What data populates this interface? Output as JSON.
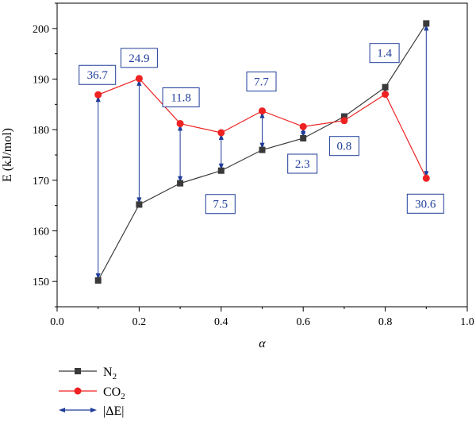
{
  "chart_data": {
    "type": "line",
    "title": "",
    "xlabel": "α",
    "ylabel": "E (kJ/mol)",
    "xlim": [
      0.0,
      1.0
    ],
    "ylim": [
      145,
      205
    ],
    "x_ticks": [
      0.0,
      0.2,
      0.4,
      0.6,
      0.8,
      1.0
    ],
    "x_tick_labels": [
      "0.0",
      "0.2",
      "0.4",
      "0.6",
      "0.8",
      "1.0"
    ],
    "y_ticks": [
      150,
      160,
      170,
      180,
      190,
      200
    ],
    "y_tick_labels": [
      "150",
      "160",
      "170",
      "180",
      "190",
      "200"
    ],
    "grid": false,
    "legend_position": "bottom-left, below plot",
    "series": [
      {
        "name": "N2",
        "color": "#3a3a3a",
        "marker": "square",
        "x": [
          0.1,
          0.2,
          0.3,
          0.4,
          0.5,
          0.6,
          0.7,
          0.8,
          0.9
        ],
        "values": [
          150.2,
          165.2,
          169.4,
          171.9,
          176.0,
          178.3,
          182.6,
          188.4,
          201.0
        ]
      },
      {
        "name": "CO2",
        "color": "#ee2222",
        "marker": "circle",
        "x": [
          0.1,
          0.2,
          0.3,
          0.4,
          0.5,
          0.6,
          0.7,
          0.8,
          0.9
        ],
        "values": [
          186.9,
          190.1,
          181.2,
          179.4,
          183.7,
          180.6,
          181.8,
          187.0,
          170.4
        ]
      }
    ],
    "delta_series": {
      "name": "|ΔE|",
      "color": "#1f3c99",
      "x": [
        0.1,
        0.2,
        0.3,
        0.4,
        0.5,
        0.6,
        0.7,
        0.8,
        0.9
      ],
      "labels": [
        "36.7",
        "24.9",
        "11.8",
        "7.5",
        "7.7",
        "2.3",
        "0.8",
        "1.4",
        "30.6"
      ]
    },
    "legend": [
      {
        "name": "N",
        "sub": "2"
      },
      {
        "name": "CO",
        "sub": "2"
      },
      {
        "name": "|ΔE|",
        "sub": ""
      }
    ]
  }
}
